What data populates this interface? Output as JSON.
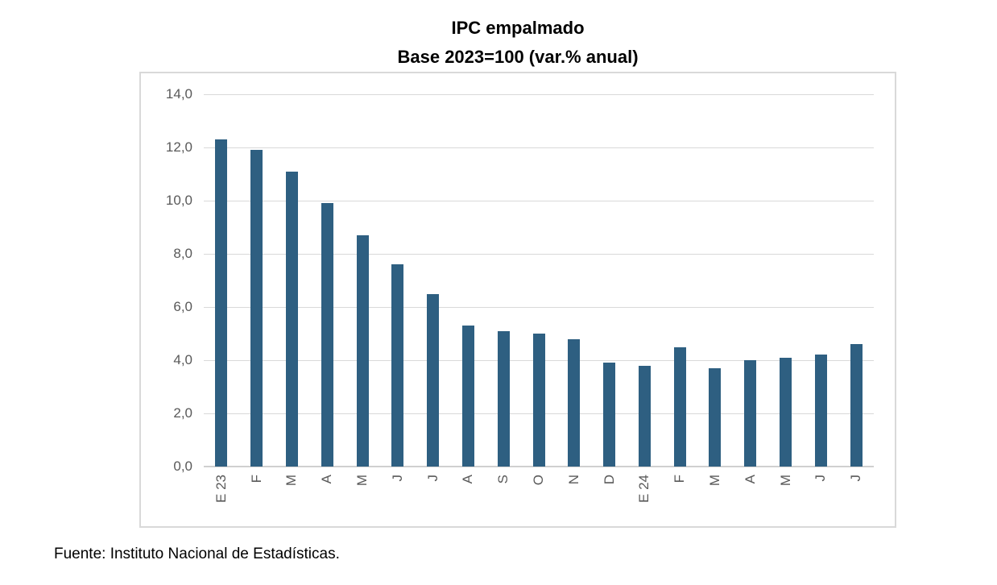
{
  "chart_data": {
    "type": "bar",
    "title": "IPC empalmado",
    "subtitle": "Base 2023=100 (var.% anual)",
    "categories": [
      "E 23",
      "F",
      "M",
      "A",
      "M",
      "J",
      "J",
      "A",
      "S",
      "O",
      "N",
      "D",
      "E 24",
      "F",
      "M",
      "A",
      "M",
      "J",
      "J"
    ],
    "values": [
      12.3,
      11.9,
      11.1,
      9.9,
      8.7,
      7.6,
      6.5,
      5.3,
      5.1,
      5.0,
      4.8,
      3.9,
      3.8,
      4.5,
      3.7,
      4.0,
      4.1,
      4.2,
      4.6
    ],
    "ylim": [
      0,
      14
    ],
    "ytick_step": 2,
    "ytick_labels": [
      "0,0",
      "2,0",
      "4,0",
      "6,0",
      "8,0",
      "10,0",
      "12,0",
      "14,0"
    ],
    "xlabel": "",
    "ylabel": "",
    "grid": true,
    "legend_position": "none",
    "bar_color": "#2e5f81",
    "gridline_color": "#d9d9d9",
    "axis_line_color": "#d0d0d0",
    "tick_label_color": "#595959"
  },
  "footer": {
    "source": "Fuente: Instituto Nacional de Estadísticas."
  }
}
